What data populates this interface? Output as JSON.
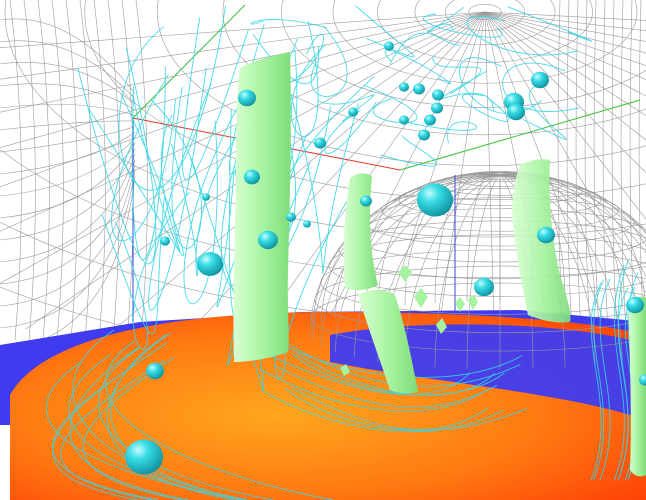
{
  "scene": {
    "background": "#ffffff",
    "colors": {
      "floor_blue": "#3f3cf0",
      "floor_orange_center": "#ff9a1e",
      "floor_orange_edge": "#ff4a08",
      "grid_line": "#8a8a8a",
      "dome_mesh": "#9a9a9a",
      "streamline": "#35d6e6",
      "isosurface": "#a6f3a0",
      "sphere": "#1fd3dc",
      "axis_x": "#e03a2a",
      "axis_y": "#3ac43a",
      "axis_z": "#3a4ae0"
    },
    "elements": [
      "background-grid-mesh",
      "blue-floor-plane",
      "orange-heat-disk",
      "hemisphere-wireframe-mesh",
      "cyan-streamlines",
      "green-isosurfaces",
      "cyan-glyph-spheres",
      "coordinate-axes"
    ]
  }
}
